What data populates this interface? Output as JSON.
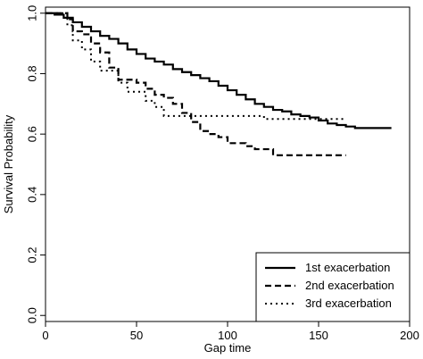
{
  "chart_data": {
    "type": "line",
    "title": "",
    "xlabel": "Gap time",
    "ylabel": "Survival Probability",
    "xlim": [
      0,
      200
    ],
    "ylim": [
      -0.02,
      1.02
    ],
    "x_ticks": [
      0,
      50,
      100,
      150,
      200
    ],
    "x_tick_labels": [
      "0",
      "50",
      "100",
      "150",
      "200"
    ],
    "y_ticks": [
      0.0,
      0.2,
      0.4,
      0.6,
      0.8,
      1.0
    ],
    "y_tick_labels": [
      "0.0",
      "0.2",
      "0.4",
      "0.6",
      "0.8",
      "1.0"
    ],
    "grid": false,
    "legend_placement": "bottom-right",
    "series": [
      {
        "name": "1st exacerbation",
        "line_style": "solid",
        "color": "#000000",
        "x": [
          0,
          5,
          10,
          15,
          20,
          25,
          30,
          35,
          40,
          45,
          50,
          55,
          60,
          65,
          70,
          75,
          80,
          85,
          90,
          95,
          100,
          105,
          110,
          115,
          120,
          125,
          130,
          135,
          140,
          145,
          150,
          155,
          160,
          165,
          170,
          175,
          180,
          185,
          190
        ],
        "y": [
          1.0,
          0.995,
          0.985,
          0.97,
          0.955,
          0.94,
          0.925,
          0.915,
          0.9,
          0.88,
          0.865,
          0.85,
          0.84,
          0.83,
          0.815,
          0.805,
          0.795,
          0.785,
          0.775,
          0.76,
          0.745,
          0.73,
          0.715,
          0.7,
          0.69,
          0.68,
          0.675,
          0.665,
          0.66,
          0.655,
          0.645,
          0.635,
          0.63,
          0.625,
          0.62,
          0.62,
          0.62,
          0.62,
          0.62
        ]
      },
      {
        "name": "2nd exacerbation",
        "line_style": "dashed",
        "color": "#000000",
        "x": [
          0,
          12,
          15,
          20,
          25,
          30,
          35,
          40,
          45,
          50,
          55,
          60,
          65,
          70,
          75,
          80,
          85,
          90,
          95,
          100,
          105,
          110,
          115,
          120,
          125,
          130,
          140,
          150,
          160,
          165
        ],
        "y": [
          1.0,
          0.98,
          0.94,
          0.93,
          0.9,
          0.87,
          0.82,
          0.78,
          0.78,
          0.77,
          0.75,
          0.73,
          0.72,
          0.7,
          0.67,
          0.64,
          0.61,
          0.6,
          0.59,
          0.57,
          0.57,
          0.56,
          0.55,
          0.55,
          0.53,
          0.53,
          0.53,
          0.53,
          0.53,
          0.53
        ]
      },
      {
        "name": "3rd exacerbation",
        "line_style": "dotted",
        "color": "#000000",
        "x": [
          0,
          12,
          15,
          20,
          25,
          30,
          35,
          40,
          45,
          50,
          55,
          60,
          65,
          70,
          80,
          100,
          120,
          140,
          160,
          165
        ],
        "y": [
          1.0,
          0.96,
          0.91,
          0.88,
          0.84,
          0.81,
          0.81,
          0.77,
          0.74,
          0.74,
          0.71,
          0.69,
          0.66,
          0.66,
          0.66,
          0.66,
          0.65,
          0.65,
          0.65,
          0.65
        ]
      }
    ]
  }
}
